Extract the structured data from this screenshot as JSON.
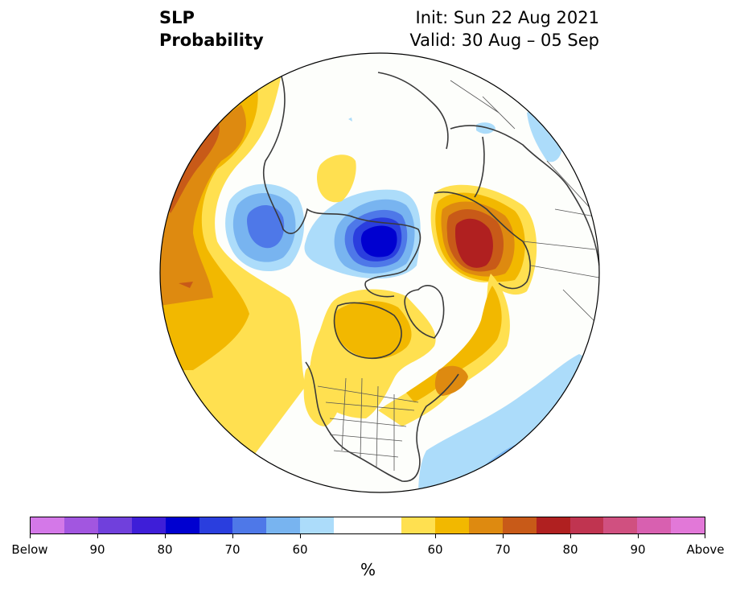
{
  "header": {
    "title_line1": "SLP",
    "title_line2": "Probability",
    "init": "Init: Sun 22 Aug 2021",
    "valid": "Valid: 30 Aug – 05 Sep"
  },
  "map": {
    "projection": "north-polar-stereographic",
    "features": [
      "coastlines",
      "country-borders",
      "us-state-borders"
    ],
    "anomalies": [
      {
        "region": "North Pacific / Aleutians",
        "category": "above",
        "max_level": 75
      },
      {
        "region": "East Siberian Sea",
        "category": "below",
        "max_level": 70
      },
      {
        "region": "Central Arctic Ocean",
        "category": "below",
        "max_level": 80
      },
      {
        "region": "Hudson Bay / Canadian Arctic",
        "category": "above",
        "max_level": 65
      },
      {
        "region": "Scandinavia / Northwest Russia",
        "category": "above",
        "max_level": 80
      },
      {
        "region": "Western Canada",
        "category": "above",
        "max_level": 60
      },
      {
        "region": "Labrador / Atlantic Canada",
        "category": "above",
        "max_level": 70
      },
      {
        "region": "Central North Atlantic",
        "category": "below",
        "max_level": 65
      }
    ]
  },
  "colorbar": {
    "colors": [
      "#d478e8",
      "#a256e0",
      "#7040dc",
      "#3e1ed8",
      "#0000d0",
      "#2a3ede",
      "#4e78e8",
      "#78b4f0",
      "#acdcfa",
      "#ffffff",
      "#ffffff",
      "#ffe050",
      "#f2b800",
      "#de8a10",
      "#c85a18",
      "#b02020",
      "#c03450",
      "#d05080",
      "#d860b0",
      "#e278d8"
    ],
    "tick_labels": [
      "Below",
      "90",
      "80",
      "70",
      "60",
      "60",
      "70",
      "80",
      "90",
      "Above"
    ],
    "unit": "%"
  }
}
